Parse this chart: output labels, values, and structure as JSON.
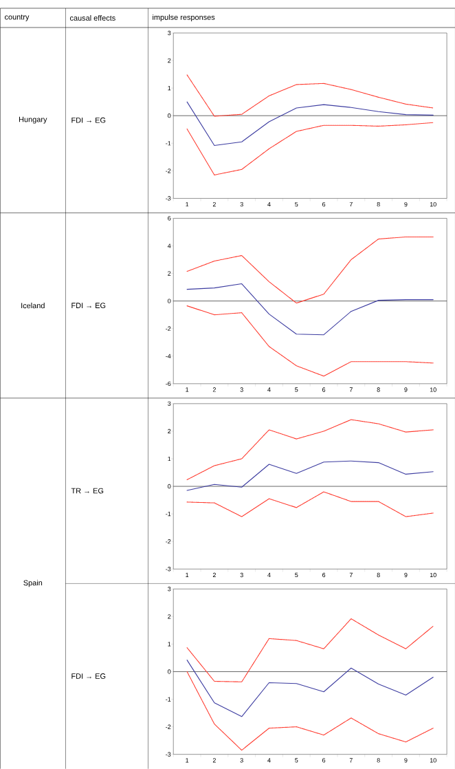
{
  "chart_data": [
    {
      "type": "line",
      "annotations": [
        "country",
        "causal effects",
        "impulse responses",
        "Hungary",
        "FDI → EG"
      ],
      "categories": [
        "1",
        "2",
        "3",
        "4",
        "5",
        "6",
        "7",
        "8",
        "9",
        "10"
      ],
      "ylim": [
        -3,
        3
      ],
      "yticks": [
        -3,
        -2,
        -1,
        0,
        1,
        2,
        3
      ],
      "ref_lines": [
        {
          "axis": "y",
          "value": 0
        }
      ],
      "series": [
        {
          "color": "#3c3ca0",
          "line_style": "solid",
          "values": [
            0.5,
            -1.08,
            -0.95,
            -0.22,
            0.28,
            0.4,
            0.3,
            0.15,
            0.04,
            0.02
          ]
        },
        {
          "color": "#ff3b2f",
          "line_style": "dashed",
          "values": [
            1.48,
            -0.02,
            0.05,
            0.72,
            1.13,
            1.17,
            0.95,
            0.67,
            0.42,
            0.28
          ]
        },
        {
          "color": "#ff3b2f",
          "line_style": "dashed",
          "values": [
            -0.48,
            -2.15,
            -1.95,
            -1.2,
            -0.57,
            -0.35,
            -0.35,
            -0.38,
            -0.33,
            -0.25
          ]
        }
      ]
    },
    {
      "type": "line",
      "annotations": [
        "Iceland",
        "FDI → EG"
      ],
      "categories": [
        "1",
        "2",
        "3",
        "4",
        "5",
        "6",
        "7",
        "8",
        "9",
        "10"
      ],
      "ylim": [
        -6,
        6
      ],
      "yticks": [
        -6,
        -4,
        -2,
        0,
        2,
        4,
        6
      ],
      "ref_lines": [
        {
          "axis": "y",
          "value": 0
        }
      ],
      "series": [
        {
          "color": "#3c3ca0",
          "line_style": "solid",
          "values": [
            0.85,
            0.95,
            1.25,
            -0.95,
            -2.4,
            -2.45,
            -0.75,
            0.05,
            0.1,
            0.1
          ]
        },
        {
          "color": "#ff3b2f",
          "line_style": "dashed",
          "values": [
            2.15,
            2.9,
            3.3,
            1.4,
            -0.15,
            0.5,
            3.0,
            4.5,
            4.65,
            4.65
          ]
        },
        {
          "color": "#ff3b2f",
          "line_style": "dashed",
          "values": [
            -0.35,
            -1.0,
            -0.85,
            -3.3,
            -4.7,
            -5.45,
            -4.4,
            -4.4,
            -4.4,
            -4.5
          ]
        }
      ]
    },
    {
      "type": "line",
      "annotations": [
        "Spain",
        "TR → EG"
      ],
      "categories": [
        "1",
        "2",
        "3",
        "4",
        "5",
        "6",
        "7",
        "8",
        "9",
        "10"
      ],
      "ylim": [
        -3,
        3
      ],
      "yticks": [
        -3,
        -2,
        -1,
        0,
        1,
        2,
        3
      ],
      "ref_lines": [
        {
          "axis": "y",
          "value": 0
        }
      ],
      "series": [
        {
          "color": "#3c3ca0",
          "line_style": "solid",
          "values": [
            -0.15,
            0.07,
            -0.03,
            0.8,
            0.47,
            0.88,
            0.92,
            0.86,
            0.44,
            0.53
          ]
        },
        {
          "color": "#ff3b2f",
          "line_style": "dashed",
          "values": [
            0.24,
            0.75,
            1.0,
            2.05,
            1.72,
            2.0,
            2.42,
            2.27,
            1.97,
            2.05
          ]
        },
        {
          "color": "#ff3b2f",
          "line_style": "dashed",
          "values": [
            -0.57,
            -0.6,
            -1.1,
            -0.45,
            -0.77,
            -0.2,
            -0.55,
            -0.55,
            -1.1,
            -0.97
          ]
        }
      ]
    },
    {
      "type": "line",
      "annotations": [
        "FDI → EG"
      ],
      "categories": [
        "1",
        "2",
        "3",
        "4",
        "5",
        "6",
        "7",
        "8",
        "9",
        "10"
      ],
      "ylim": [
        -3,
        3
      ],
      "yticks": [
        -3,
        -2,
        -1,
        0,
        1,
        2,
        3
      ],
      "ref_lines": [
        {
          "axis": "y",
          "value": 0
        }
      ],
      "series": [
        {
          "color": "#3c3ca0",
          "line_style": "solid",
          "values": [
            0.42,
            -1.13,
            -1.63,
            -0.4,
            -0.43,
            -0.73,
            0.13,
            -0.45,
            -0.85,
            -0.2
          ]
        },
        {
          "color": "#ff3b2f",
          "line_style": "dashed",
          "values": [
            0.87,
            -0.35,
            -0.37,
            1.2,
            1.13,
            0.83,
            1.92,
            1.33,
            0.83,
            1.65
          ]
        },
        {
          "color": "#ff3b2f",
          "line_style": "dashed",
          "values": [
            0.0,
            -1.9,
            -2.85,
            -2.05,
            -2.0,
            -2.3,
            -1.68,
            -2.25,
            -2.55,
            -2.05
          ]
        }
      ]
    }
  ]
}
